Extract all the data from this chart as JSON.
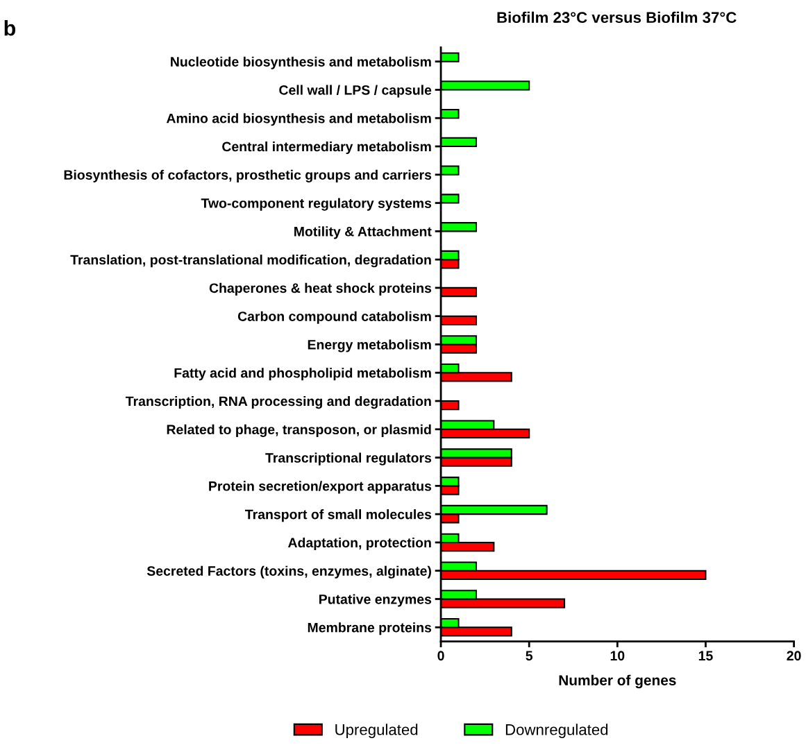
{
  "chart_data": {
    "type": "bar",
    "orientation": "horizontal",
    "title": "Biofilm 23°C versus Biofilm 37°C",
    "xlabel": "Number of genes",
    "categories": [
      "Nucleotide biosynthesis and metabolism",
      "Cell wall / LPS / capsule",
      "Amino acid biosynthesis and metabolism",
      "Central intermediary metabolism",
      "Biosynthesis of cofactors, prosthetic groups and carriers",
      "Two-component regulatory systems",
      "Motility & Attachment",
      "Translation, post-translational modification, degradation",
      "Chaperones & heat shock proteins",
      "Carbon compound catabolism",
      "Energy metabolism",
      "Fatty acid and phospholipid metabolism",
      "Transcription, RNA processing and degradation",
      "Related to phage, transposon, or plasmid",
      "Transcriptional regulators",
      "Protein secretion/export apparatus",
      "Transport of small molecules",
      "Adaptation, protection",
      "Secreted Factors (toxins, enzymes, alginate)",
      "Putative enzymes",
      "Membrane proteins"
    ],
    "series": [
      {
        "name": "Upregulated",
        "color": "#ff0000",
        "values": [
          null,
          null,
          null,
          null,
          null,
          null,
          null,
          1,
          2,
          2,
          2,
          4,
          1,
          5,
          4,
          1,
          1,
          3,
          15,
          7,
          4
        ]
      },
      {
        "name": "Downregulated",
        "color": "#00ff00",
        "values": [
          1,
          5,
          1,
          2,
          1,
          1,
          2,
          1,
          null,
          null,
          2,
          1,
          null,
          3,
          4,
          1,
          6,
          1,
          2,
          2,
          1
        ]
      }
    ],
    "xlim": [
      0,
      20
    ],
    "xticks": [
      0,
      5,
      10,
      15,
      20
    ],
    "grid": false,
    "legend": "bottom",
    "annotations": [
      "b"
    ]
  }
}
